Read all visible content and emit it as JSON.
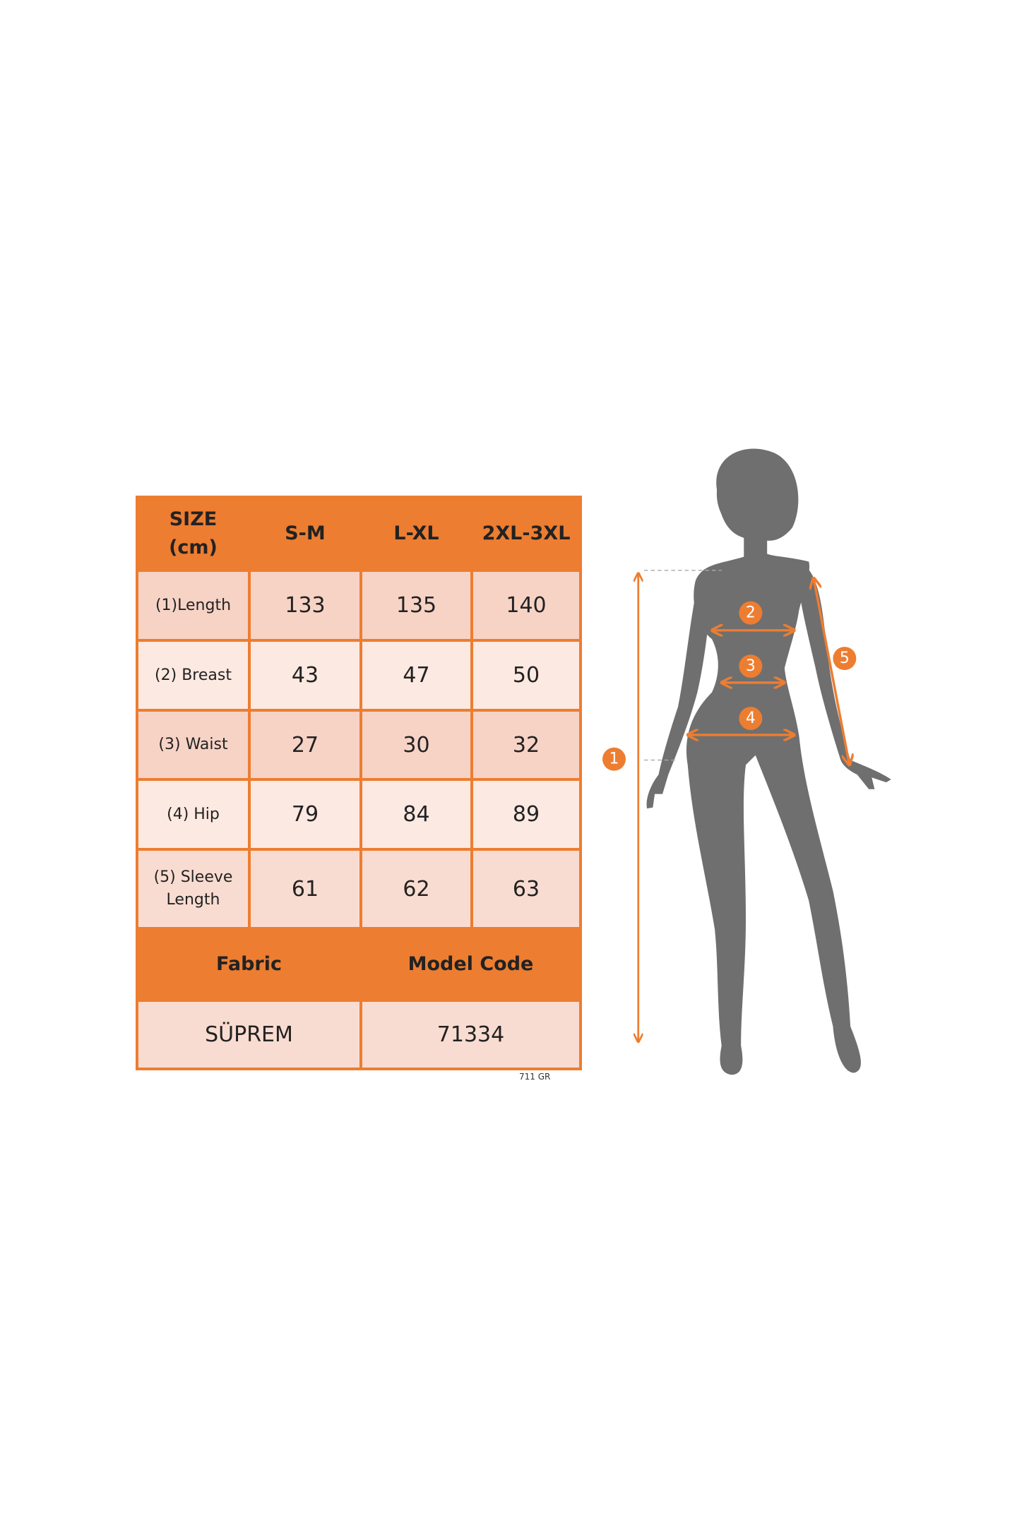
{
  "table": {
    "header": [
      "SIZE\n(cm)",
      "S-M",
      "L-XL",
      "2XL-3XL"
    ],
    "header_size": "SIZE",
    "header_unit": "(cm)",
    "rows": [
      {
        "label": "(1)Length",
        "values": [
          "133",
          "135",
          "140"
        ]
      },
      {
        "label": "(2) Breast",
        "values": [
          "43",
          "47",
          "50"
        ]
      },
      {
        "label": "(3) Waist",
        "values": [
          "27",
          "30",
          "32"
        ]
      },
      {
        "label": "(4) Hip",
        "values": [
          "79",
          "84",
          "89"
        ]
      },
      {
        "label": "(5) Sleeve Length",
        "values": [
          "61",
          "62",
          "63"
        ]
      }
    ],
    "fabric_label": "Fabric",
    "model_code_label": "Model Code",
    "fabric_value": "SÜPREM",
    "model_code_value": "71334"
  },
  "footnote": "711 GR",
  "figure": {
    "markers": [
      "1",
      "2",
      "3",
      "4",
      "5"
    ]
  },
  "colors": {
    "accent": "#ed7d31",
    "silhouette": "#6f6f6f"
  }
}
